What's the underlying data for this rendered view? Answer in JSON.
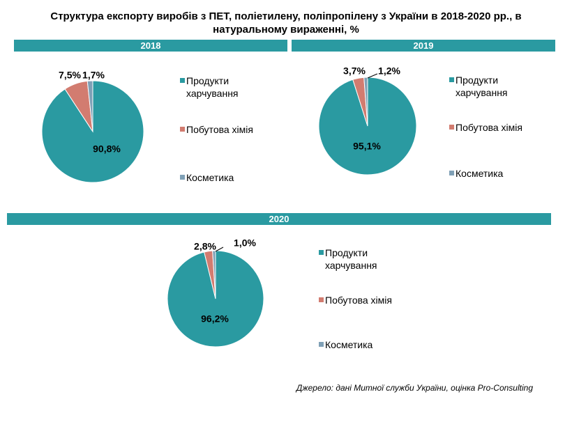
{
  "title": "Структура експорту виробів з ПЕТ, поліетилену, поліпропілену з України в 2018-2020 рр., в натуральному вираженні, %",
  "legend_items": [
    {
      "label_line1": "Продукти",
      "label_line2": "харчування",
      "color": "#2a9aa1"
    },
    {
      "label_line1": "Побутова хімія",
      "label_line2": "",
      "color": "#d27c70"
    },
    {
      "label_line1": "Косметика",
      "label_line2": "",
      "color": "#7fa0b6"
    }
  ],
  "source": "Джерело: дані Митної служби України, оцінка Pro-Consulting",
  "chart_data": [
    {
      "type": "pie",
      "title": "2018",
      "categories": [
        "Продукти харчування",
        "Побутова хімія",
        "Косметика"
      ],
      "values": [
        90.8,
        7.5,
        1.7
      ],
      "labels": [
        "90,8%",
        "7,5%",
        "1,7%"
      ]
    },
    {
      "type": "pie",
      "title": "2019",
      "categories": [
        "Продукти харчування",
        "Побутова хімія",
        "Косметика"
      ],
      "values": [
        95.1,
        3.7,
        1.2
      ],
      "labels": [
        "95,1%",
        "3,7%",
        "1,2%"
      ]
    },
    {
      "type": "pie",
      "title": "2020",
      "categories": [
        "Продукти харчування",
        "Побутова хімія",
        "Косметика"
      ],
      "values": [
        96.2,
        2.8,
        1.0
      ],
      "labels": [
        "96,2%",
        "2,8%",
        "1,0%"
      ]
    }
  ]
}
